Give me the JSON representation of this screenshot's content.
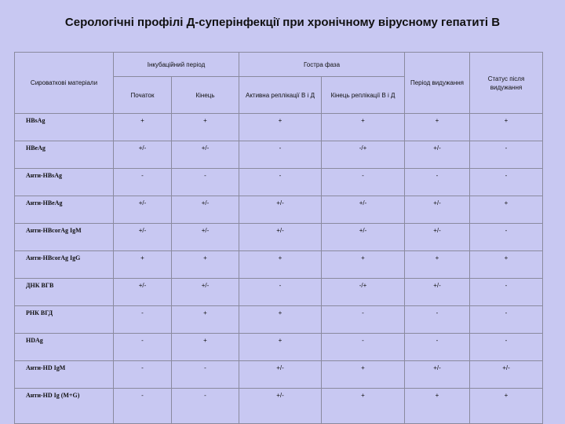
{
  "title": "Серологічні профілі Д-суперінфекції при хронічному вірусному гепатиті В",
  "table": {
    "header": {
      "materials": "Сироваткові матеріали",
      "incubation": "Інкубаційний період",
      "acute": "Гостра фаза",
      "recovery_period": "Період видужання",
      "status_after": "Статус після видужання",
      "start": "Початок",
      "end": "Кінець",
      "active_replication": "Активна реплікації В і Д",
      "end_replication": "Кінець реплікації В і Д"
    },
    "rows": [
      {
        "marker": "HBsAg",
        "cells": [
          "+",
          "+",
          "+",
          "+",
          "+",
          "+"
        ]
      },
      {
        "marker": "HBeAg",
        "cells": [
          "+/-",
          "+/-",
          "-",
          "-/+",
          "+/-",
          "-"
        ]
      },
      {
        "marker": "Анти-HBsAg",
        "cells": [
          "-",
          "-",
          "-",
          "-",
          "-",
          "-"
        ]
      },
      {
        "marker": "Анти-HBeAg",
        "cells": [
          "+/-",
          "+/-",
          "+/-",
          "+/-",
          "+/-",
          "+"
        ]
      },
      {
        "marker": "Анти-HBcorAg IgM",
        "cells": [
          "+/-",
          "+/-",
          "+/-",
          "+/-",
          "+/-",
          "-"
        ]
      },
      {
        "marker": "Анти-HBcorAg IgG",
        "cells": [
          "+",
          "+",
          "+",
          "+",
          "+",
          "+"
        ]
      },
      {
        "marker": "ДНК ВГВ",
        "cells": [
          "+/-",
          "+/-",
          "-",
          "-/+",
          "+/-",
          "-"
        ]
      },
      {
        "marker": "РНК ВГД",
        "cells": [
          "-",
          "+",
          "+",
          "-",
          "-",
          "-"
        ]
      },
      {
        "marker": "HDAg",
        "cells": [
          "-",
          "+",
          "+",
          "-",
          "-",
          "-"
        ]
      },
      {
        "marker": "Анти-HD IgM",
        "cells": [
          "-",
          "-",
          "+/-",
          "+",
          "+/-",
          "+/-"
        ]
      },
      {
        "marker": "Анти-HD Ig (M+G)",
        "cells": [
          "-",
          "-",
          "+/-",
          "+",
          "+",
          "+"
        ]
      }
    ]
  }
}
